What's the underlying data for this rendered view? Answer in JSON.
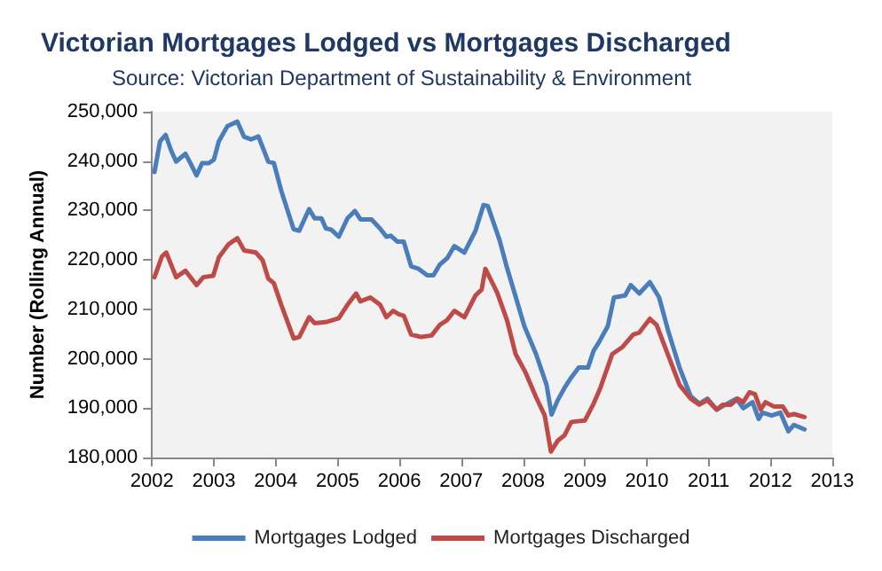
{
  "chart_data": {
    "type": "line",
    "title": "Victorian Mortgages Lodged vs Mortgages Discharged",
    "subtitle": "Source: Victorian Department of Sustainability & Environment",
    "ylabel": "Number (Rolling Annual)",
    "xlim": [
      2002,
      2013
    ],
    "xticks": [
      2002,
      2003,
      2004,
      2005,
      2006,
      2007,
      2008,
      2009,
      2010,
      2011,
      2012,
      2013
    ],
    "ylim": [
      180000,
      250000
    ],
    "yticks": [
      {
        "value": 180000,
        "label": "180,000"
      },
      {
        "value": 190000,
        "label": "190,000"
      },
      {
        "value": 200000,
        "label": "200,000"
      },
      {
        "value": 210000,
        "label": "210,000"
      },
      {
        "value": 220000,
        "label": "220,000"
      },
      {
        "value": 230000,
        "label": "230,000"
      },
      {
        "value": 240000,
        "label": "240,000"
      },
      {
        "value": 250000,
        "label": "250,000"
      }
    ],
    "grid": false,
    "legend": "bottom",
    "marker": "none",
    "line_style": "solid",
    "series": [
      {
        "name": "Mortgages Lodged",
        "color": "#4a7ebb",
        "x": [
          2002.04,
          2002.13,
          2002.22,
          2002.31,
          2002.39,
          2002.54,
          2002.62,
          2002.72,
          2002.81,
          2002.92,
          2003.0,
          2003.08,
          2003.22,
          2003.38,
          2003.49,
          2003.6,
          2003.72,
          2003.88,
          2003.97,
          2004.09,
          2004.29,
          2004.38,
          2004.54,
          2004.63,
          2004.74,
          2004.81,
          2004.9,
          2005.02,
          2005.16,
          2005.28,
          2005.37,
          2005.55,
          2005.69,
          2005.79,
          2005.86,
          2005.97,
          2006.07,
          2006.19,
          2006.31,
          2006.45,
          2006.55,
          2006.65,
          2006.77,
          2006.89,
          2007.05,
          2007.23,
          2007.36,
          2007.43,
          2007.62,
          2007.74,
          2007.86,
          2008.02,
          2008.21,
          2008.38,
          2008.46,
          2008.56,
          2008.67,
          2008.78,
          2008.9,
          2009.05,
          2009.14,
          2009.23,
          2009.37,
          2009.47,
          2009.65,
          2009.74,
          2009.88,
          2010.05,
          2010.2,
          2010.34,
          2010.53,
          2010.71,
          2010.85,
          2010.98,
          2011.13,
          2011.27,
          2011.45,
          2011.56,
          2011.71,
          2011.81,
          2011.87,
          2012.02,
          2012.16,
          2012.29,
          2012.38,
          2012.55
        ],
        "values": [
          237800,
          244000,
          245300,
          242100,
          239900,
          241500,
          239600,
          237100,
          239600,
          239600,
          240300,
          244000,
          247100,
          248000,
          244900,
          244400,
          245000,
          239900,
          239600,
          234000,
          226200,
          225900,
          230300,
          228400,
          228400,
          226400,
          226100,
          224700,
          228400,
          229900,
          228200,
          228200,
          226300,
          224700,
          224900,
          223700,
          223700,
          218700,
          218200,
          216900,
          216900,
          219000,
          220300,
          222800,
          221500,
          225900,
          231100,
          230900,
          224000,
          218400,
          213400,
          206600,
          200900,
          194700,
          188700,
          191600,
          194100,
          196200,
          198200,
          198200,
          201600,
          203400,
          206600,
          212400,
          212800,
          214900,
          213200,
          215500,
          212400,
          205900,
          198200,
          192400,
          190900,
          191900,
          189700,
          190700,
          191900,
          190000,
          191200,
          187800,
          189100,
          188500,
          189100,
          185300,
          186600,
          185700
        ]
      },
      {
        "name": "Mortgages Discharged",
        "color": "#be4b48",
        "x": [
          2002.04,
          2002.16,
          2002.23,
          2002.39,
          2002.54,
          2002.72,
          2002.83,
          2002.99,
          2003.08,
          2003.24,
          2003.38,
          2003.49,
          2003.68,
          2003.79,
          2003.88,
          2003.97,
          2004.09,
          2004.29,
          2004.38,
          2004.54,
          2004.63,
          2004.81,
          2005.02,
          2005.16,
          2005.3,
          2005.37,
          2005.53,
          2005.69,
          2005.79,
          2005.9,
          2005.99,
          2006.07,
          2006.19,
          2006.35,
          2006.52,
          2006.65,
          2006.77,
          2006.89,
          2007.05,
          2007.23,
          2007.33,
          2007.39,
          2007.58,
          2007.74,
          2007.88,
          2008.04,
          2008.21,
          2008.35,
          2008.45,
          2008.56,
          2008.67,
          2008.78,
          2009.0,
          2009.14,
          2009.25,
          2009.44,
          2009.61,
          2009.78,
          2009.88,
          2010.05,
          2010.16,
          2010.34,
          2010.53,
          2010.71,
          2010.85,
          2010.98,
          2011.13,
          2011.23,
          2011.36,
          2011.47,
          2011.56,
          2011.66,
          2011.75,
          2011.84,
          2011.92,
          2012.06,
          2012.2,
          2012.29,
          2012.38,
          2012.55
        ],
        "values": [
          216500,
          220700,
          221500,
          216500,
          217800,
          214900,
          216500,
          216800,
          220500,
          223200,
          224400,
          221900,
          221500,
          219900,
          216200,
          215300,
          210900,
          204100,
          204400,
          208400,
          207200,
          207400,
          208200,
          210900,
          213200,
          211600,
          212400,
          210900,
          208400,
          209700,
          209000,
          208700,
          204900,
          204400,
          204700,
          206800,
          207800,
          209700,
          208400,
          212800,
          214000,
          218200,
          213400,
          207800,
          200900,
          197200,
          192200,
          188500,
          181200,
          183400,
          184500,
          187200,
          187500,
          190900,
          194100,
          200900,
          202400,
          204900,
          205300,
          208100,
          206800,
          200900,
          194700,
          191900,
          190700,
          191600,
          189700,
          190700,
          190700,
          191900,
          191200,
          193200,
          192800,
          189700,
          191200,
          190300,
          190300,
          188500,
          188800,
          188200
        ]
      }
    ]
  }
}
